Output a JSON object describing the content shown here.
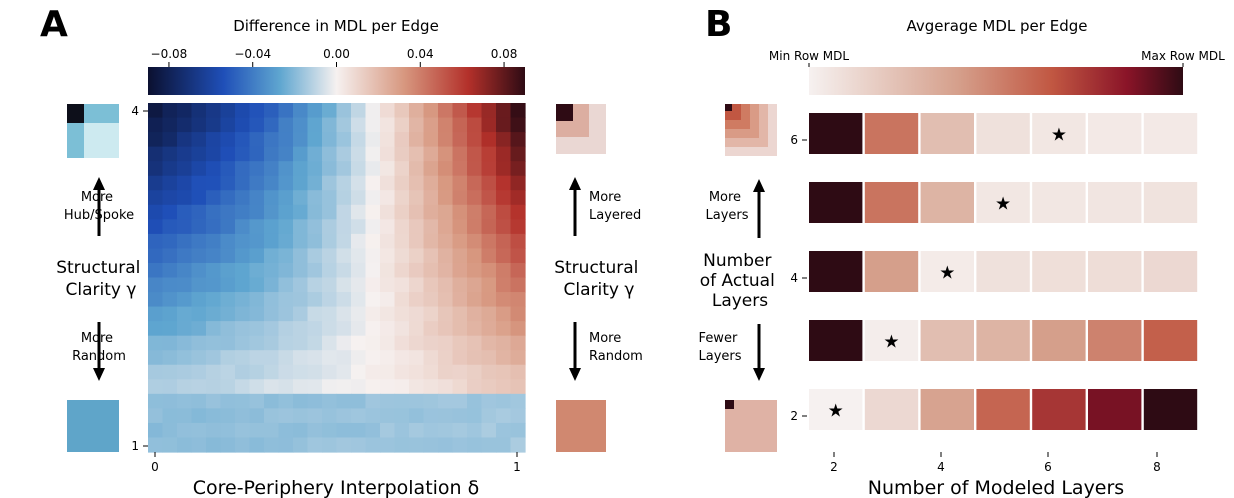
{
  "colors": {
    "blue_dark": "#0b1030",
    "blue_mid": "#2c79c9",
    "light": "#ebeeef",
    "white": "#f6f1f0",
    "red_mid": "#c15742",
    "red_dark": "#2e0b14"
  },
  "panelA": {
    "letter": "A",
    "colorbar_title": "Difference in MDL per Edge",
    "colorbar_ticks": [
      "−0.08",
      "−0.04",
      "0.00",
      "0.04",
      "0.08"
    ],
    "xlabel": "Core-Periphery Interpolation δ",
    "x_ticks": [
      "0",
      "1"
    ],
    "y_ticks": [
      "4",
      "1"
    ],
    "left_side": {
      "up": [
        "More",
        "Hub/Spoke"
      ],
      "label": [
        "Structural",
        "Clarity γ"
      ],
      "down": [
        "More",
        "Random"
      ]
    },
    "right_side": {
      "up": [
        "More",
        "Layered"
      ],
      "label": [
        "Structural",
        "Clarity γ"
      ],
      "down": [
        "More",
        "Random"
      ]
    }
  },
  "panelB": {
    "letter": "B",
    "colorbar_title": "Avgerage MDL per Edge",
    "colorbar_min_label": "Min Row MDL",
    "colorbar_max_label": "Max Row MDL",
    "xlabel": "Number of Modeled Layers",
    "x_ticks": [
      "2",
      "4",
      "6",
      "8"
    ],
    "y_ticks": [
      "6",
      "4",
      "2"
    ],
    "ylabel": [
      "Number",
      "of Actual",
      "Layers"
    ],
    "more_layers": [
      "More",
      "Layers"
    ],
    "fewer_layers": [
      "Fewer",
      "Layers"
    ]
  },
  "chart_data": [
    {
      "type": "heatmap",
      "title": "Difference in MDL per Edge",
      "xlabel": "Core-Periphery Interpolation δ",
      "ylabel": "Structural Clarity γ",
      "xlim": [
        0,
        1
      ],
      "ylim": [
        1,
        4
      ],
      "colorbar_range": [
        -0.09,
        0.09
      ],
      "description_of_values": "value ≈ negative (blue) toward top-left, positive (red) toward top-right, near zero at bottom"
    },
    {
      "type": "heatmap",
      "title": "Avgerage MDL per Edge",
      "xlabel": "Number of Modeled Layers",
      "ylabel": "Number of Actual Layers",
      "x": [
        2,
        3,
        4,
        5,
        6,
        7,
        8
      ],
      "y": [
        6,
        5,
        4,
        3,
        2
      ],
      "values_normalized_per_row": [
        [
          1.0,
          0.55,
          0.25,
          0.08,
          0.05,
          0.04,
          0.04
        ],
        [
          1.0,
          0.55,
          0.3,
          0.05,
          0.05,
          0.06,
          0.07
        ],
        [
          1.0,
          0.4,
          0.03,
          0.08,
          0.09,
          0.1,
          0.12
        ],
        [
          1.0,
          0.02,
          0.25,
          0.3,
          0.4,
          0.5,
          0.62
        ],
        [
          0.0,
          0.12,
          0.38,
          0.6,
          0.75,
          0.88,
          1.0
        ]
      ],
      "stars_at_modeled": [
        6,
        5,
        4,
        3,
        2
      ]
    }
  ]
}
